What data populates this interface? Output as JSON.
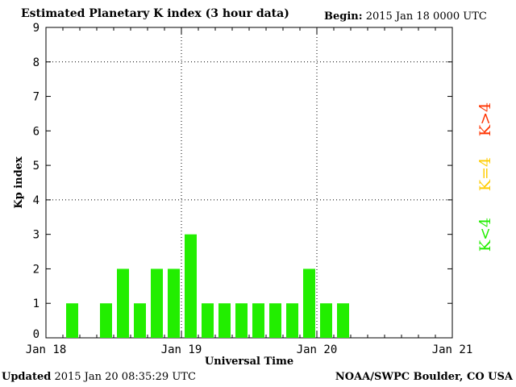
{
  "header": {
    "title": "Estimated Planetary K index (3 hour data)",
    "begin_label": "Begin:",
    "begin_value": "2015 Jan 18 0000 UTC"
  },
  "footer": {
    "updated_label": "Updated",
    "updated_value": "2015 Jan 20 08:35:29 UTC",
    "source": "NOAA/SWPC Boulder, CO USA"
  },
  "legend": [
    {
      "label": "K>4",
      "color": "#ff3300"
    },
    {
      "label": "K=4",
      "color": "#ffcc00"
    },
    {
      "label": "K<4",
      "color": "#22ee00"
    }
  ],
  "chart_data": {
    "type": "bar",
    "title": "Estimated Planetary K index (3 hour data)",
    "xlabel": "Universal Time",
    "ylabel": "Kp index",
    "ylim": [
      0,
      9
    ],
    "y_ticks": [
      "0",
      "1",
      "2",
      "3",
      "4",
      "5",
      "6",
      "7",
      "8",
      "9"
    ],
    "x_ticks": [
      "Jan 18",
      "Jan 19",
      "Jan 20",
      "Jan 21"
    ],
    "interval_hours": 3,
    "grid": true,
    "bar_color": "#22ee00",
    "series": [
      {
        "values": [
          null,
          1,
          null,
          1,
          2,
          1,
          2,
          2,
          3,
          1,
          1,
          1,
          1,
          1,
          1,
          2,
          1,
          1
        ]
      }
    ]
  }
}
